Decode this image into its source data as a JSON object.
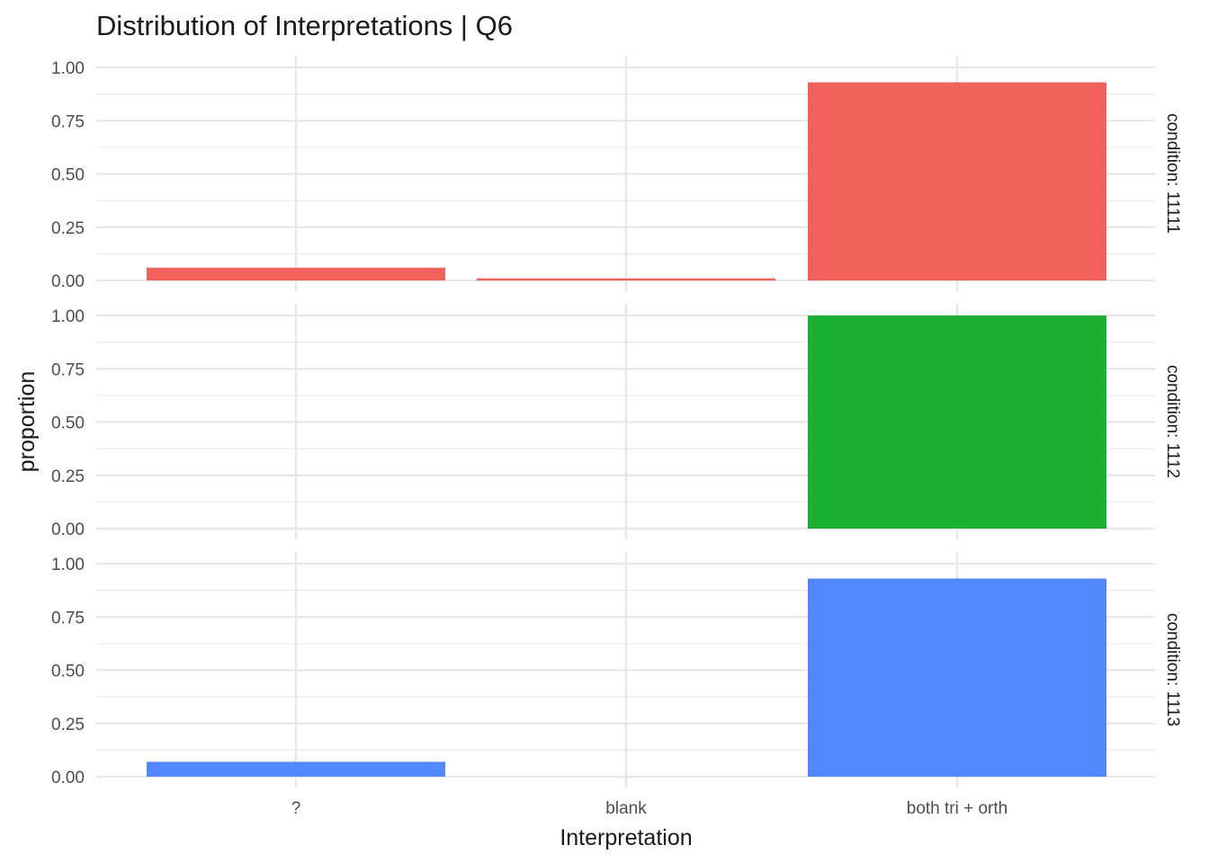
{
  "chart_data": {
    "type": "bar",
    "title": "Distribution of Interpretations | Q6",
    "xlabel": "Interpretation",
    "ylabel": "proportion",
    "categories": [
      "?",
      "blank",
      "both tri + orth"
    ],
    "ylim": [
      0,
      1
    ],
    "yticks": [
      "0.00",
      "0.25",
      "0.50",
      "0.75",
      "1.00"
    ],
    "grid": true,
    "legend": "none",
    "facets": [
      {
        "label": "condition: 11111",
        "color": "#F2615C",
        "values": [
          0.06,
          0.01,
          0.93
        ]
      },
      {
        "label": "condition: 1112",
        "color": "#1BB02F",
        "values": [
          0.0,
          0.0,
          1.0
        ]
      },
      {
        "label": "condition: 1113",
        "color": "#5187FF",
        "values": [
          0.07,
          0.0,
          0.93
        ]
      }
    ]
  }
}
